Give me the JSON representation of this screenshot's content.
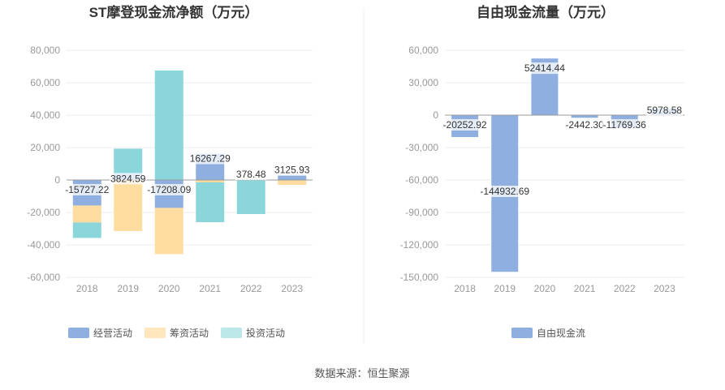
{
  "source_text": "数据来源：恒生聚源",
  "chart_data": [
    {
      "type": "bar",
      "stacked": true,
      "title": "ST摩登现金流净额（万元）",
      "categories": [
        "2018",
        "2019",
        "2020",
        "2021",
        "2022",
        "2023"
      ],
      "ylim": [
        -60000,
        80000
      ],
      "yticks": [
        80000,
        60000,
        40000,
        20000,
        0,
        -20000,
        -40000,
        -60000
      ],
      "ytick_labels": [
        "80,000",
        "60,000",
        "40,000",
        "20,000",
        "0",
        "-20,000",
        "-40,000",
        "-60,000"
      ],
      "series": [
        {
          "name": "经营活动",
          "color": "#8fafe0",
          "values": [
            -15727.22,
            3824.59,
            -17208.09,
            16267.29,
            378.48,
            3125.93
          ],
          "labels": [
            "-15727.22",
            "3824.59",
            "-17208.09",
            "16267.29",
            "378.48",
            "3125.93"
          ]
        },
        {
          "name": "筹资活动",
          "color": "#ffdca0",
          "values": [
            -10500,
            -31500,
            -28500,
            -1500,
            0,
            -3000
          ]
        },
        {
          "name": "投资活动",
          "color": "#8ad6da",
          "values": [
            -9500,
            15500,
            67500,
            -24500,
            -21000,
            0
          ]
        }
      ]
    },
    {
      "type": "bar",
      "title": "自由现金流量（万元）",
      "categories": [
        "2018",
        "2019",
        "2020",
        "2021",
        "2022",
        "2023"
      ],
      "ylim": [
        -150000,
        60000
      ],
      "yticks": [
        60000,
        30000,
        0,
        -30000,
        -60000,
        -90000,
        -120000,
        -150000
      ],
      "ytick_labels": [
        "60,000",
        "30,000",
        "0",
        "-30,000",
        "-60,000",
        "-90,000",
        "-120,000",
        "-150,000"
      ],
      "series": [
        {
          "name": "自由现金流",
          "color": "#8fafe0",
          "values": [
            -20252.92,
            -144932.69,
            52414.44,
            -2442.3,
            -11769.36,
            5978.58
          ],
          "labels": [
            "-20252.92",
            "-144932.69",
            "52414.44",
            "-2442.30",
            "-11769.36",
            "5978.58"
          ]
        }
      ]
    }
  ]
}
